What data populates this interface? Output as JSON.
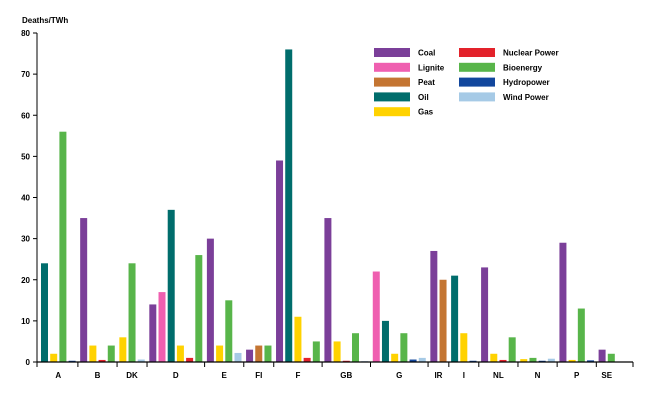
{
  "chart_data": {
    "type": "bar",
    "ylabel": "Deaths/TWh",
    "ylim": [
      0,
      80
    ],
    "yticks": [
      0,
      10,
      20,
      30,
      40,
      50,
      60,
      70,
      80
    ],
    "grid": false,
    "legend_position": "top-right",
    "series": [
      {
        "name": "Coal",
        "color": "#7b3f99"
      },
      {
        "name": "Lignite",
        "color": "#ef5fb0"
      },
      {
        "name": "Peat",
        "color": "#c47532"
      },
      {
        "name": "Oil",
        "color": "#006d6c"
      },
      {
        "name": "Gas",
        "color": "#ffd200"
      },
      {
        "name": "Nuclear Power",
        "color": "#e3222b"
      },
      {
        "name": "Bioenergy",
        "color": "#58b54a"
      },
      {
        "name": "Hydropower",
        "color": "#12479d"
      },
      {
        "name": "Wind Power",
        "color": "#a6cae6"
      }
    ],
    "categories": [
      {
        "label": "A",
        "bars": [
          {
            "series": "Oil",
            "value": 24
          },
          {
            "series": "Gas",
            "value": 2
          },
          {
            "series": "Bioenergy",
            "value": 56
          },
          {
            "series": "Hydropower",
            "value": 0.3
          }
        ]
      },
      {
        "label": "B",
        "bars": [
          {
            "series": "Coal",
            "value": 35
          },
          {
            "series": "Gas",
            "value": 4
          },
          {
            "series": "Nuclear Power",
            "value": 0.5
          },
          {
            "series": "Bioenergy",
            "value": 4
          }
        ]
      },
      {
        "label": "DK",
        "bars": [
          {
            "series": "Gas",
            "value": 6
          },
          {
            "series": "Bioenergy",
            "value": 24
          },
          {
            "series": "Wind Power",
            "value": 0.6
          }
        ]
      },
      {
        "label": "D",
        "bars": [
          {
            "series": "Coal",
            "value": 14
          },
          {
            "series": "Lignite",
            "value": 17
          },
          {
            "series": "Oil",
            "value": 37
          },
          {
            "series": "Gas",
            "value": 4
          },
          {
            "series": "Nuclear Power",
            "value": 1
          },
          {
            "series": "Bioenergy",
            "value": 26
          }
        ]
      },
      {
        "label": "E",
        "bars": [
          {
            "series": "Coal",
            "value": 30
          },
          {
            "series": "Gas",
            "value": 4
          },
          {
            "series": "Bioenergy",
            "value": 15
          },
          {
            "series": "Wind Power",
            "value": 2.2
          }
        ]
      },
      {
        "label": "FI",
        "bars": [
          {
            "series": "Coal",
            "value": 3
          },
          {
            "series": "Peat",
            "value": 4
          },
          {
            "series": "Bioenergy",
            "value": 4
          }
        ]
      },
      {
        "label": "F",
        "bars": [
          {
            "series": "Coal",
            "value": 49
          },
          {
            "series": "Oil",
            "value": 76
          },
          {
            "series": "Gas",
            "value": 11
          },
          {
            "series": "Nuclear Power",
            "value": 1
          },
          {
            "series": "Bioenergy",
            "value": 5
          }
        ]
      },
      {
        "label": "GB",
        "bars": [
          {
            "series": "Coal",
            "value": 35
          },
          {
            "series": "Gas",
            "value": 5
          },
          {
            "series": "Nuclear Power",
            "value": 0.3
          },
          {
            "series": "Bioenergy",
            "value": 7
          },
          {
            "series": "Wind Power",
            "value": 0.2
          }
        ]
      },
      {
        "label": "G",
        "bars": [
          {
            "series": "Lignite",
            "value": 22
          },
          {
            "series": "Oil",
            "value": 10
          },
          {
            "series": "Gas",
            "value": 2
          },
          {
            "series": "Bioenergy",
            "value": 7
          },
          {
            "series": "Hydropower",
            "value": 0.6
          },
          {
            "series": "Wind Power",
            "value": 1
          }
        ]
      },
      {
        "label": "IR",
        "bars": [
          {
            "series": "Coal",
            "value": 27
          },
          {
            "series": "Peat",
            "value": 20
          }
        ]
      },
      {
        "label": "I",
        "bars": [
          {
            "series": "Oil",
            "value": 21
          },
          {
            "series": "Gas",
            "value": 7
          },
          {
            "series": "Hydropower",
            "value": 0.3
          }
        ]
      },
      {
        "label": "NL",
        "bars": [
          {
            "series": "Coal",
            "value": 23
          },
          {
            "series": "Gas",
            "value": 2
          },
          {
            "series": "Nuclear Power",
            "value": 0.5
          },
          {
            "series": "Bioenergy",
            "value": 6
          }
        ]
      },
      {
        "label": "N",
        "bars": [
          {
            "series": "Gas",
            "value": 0.7
          },
          {
            "series": "Bioenergy",
            "value": 1
          },
          {
            "series": "Hydropower",
            "value": 0.3
          },
          {
            "series": "Wind Power",
            "value": 0.8
          }
        ]
      },
      {
        "label": "P",
        "bars": [
          {
            "series": "Coal",
            "value": 29
          },
          {
            "series": "Gas",
            "value": 0.5
          },
          {
            "series": "Bioenergy",
            "value": 13
          },
          {
            "series": "Hydropower",
            "value": 0.4
          }
        ]
      },
      {
        "label": "SE",
        "bars": [
          {
            "series": "Coal",
            "value": 3
          },
          {
            "series": "Bioenergy",
            "value": 2
          }
        ]
      }
    ]
  }
}
